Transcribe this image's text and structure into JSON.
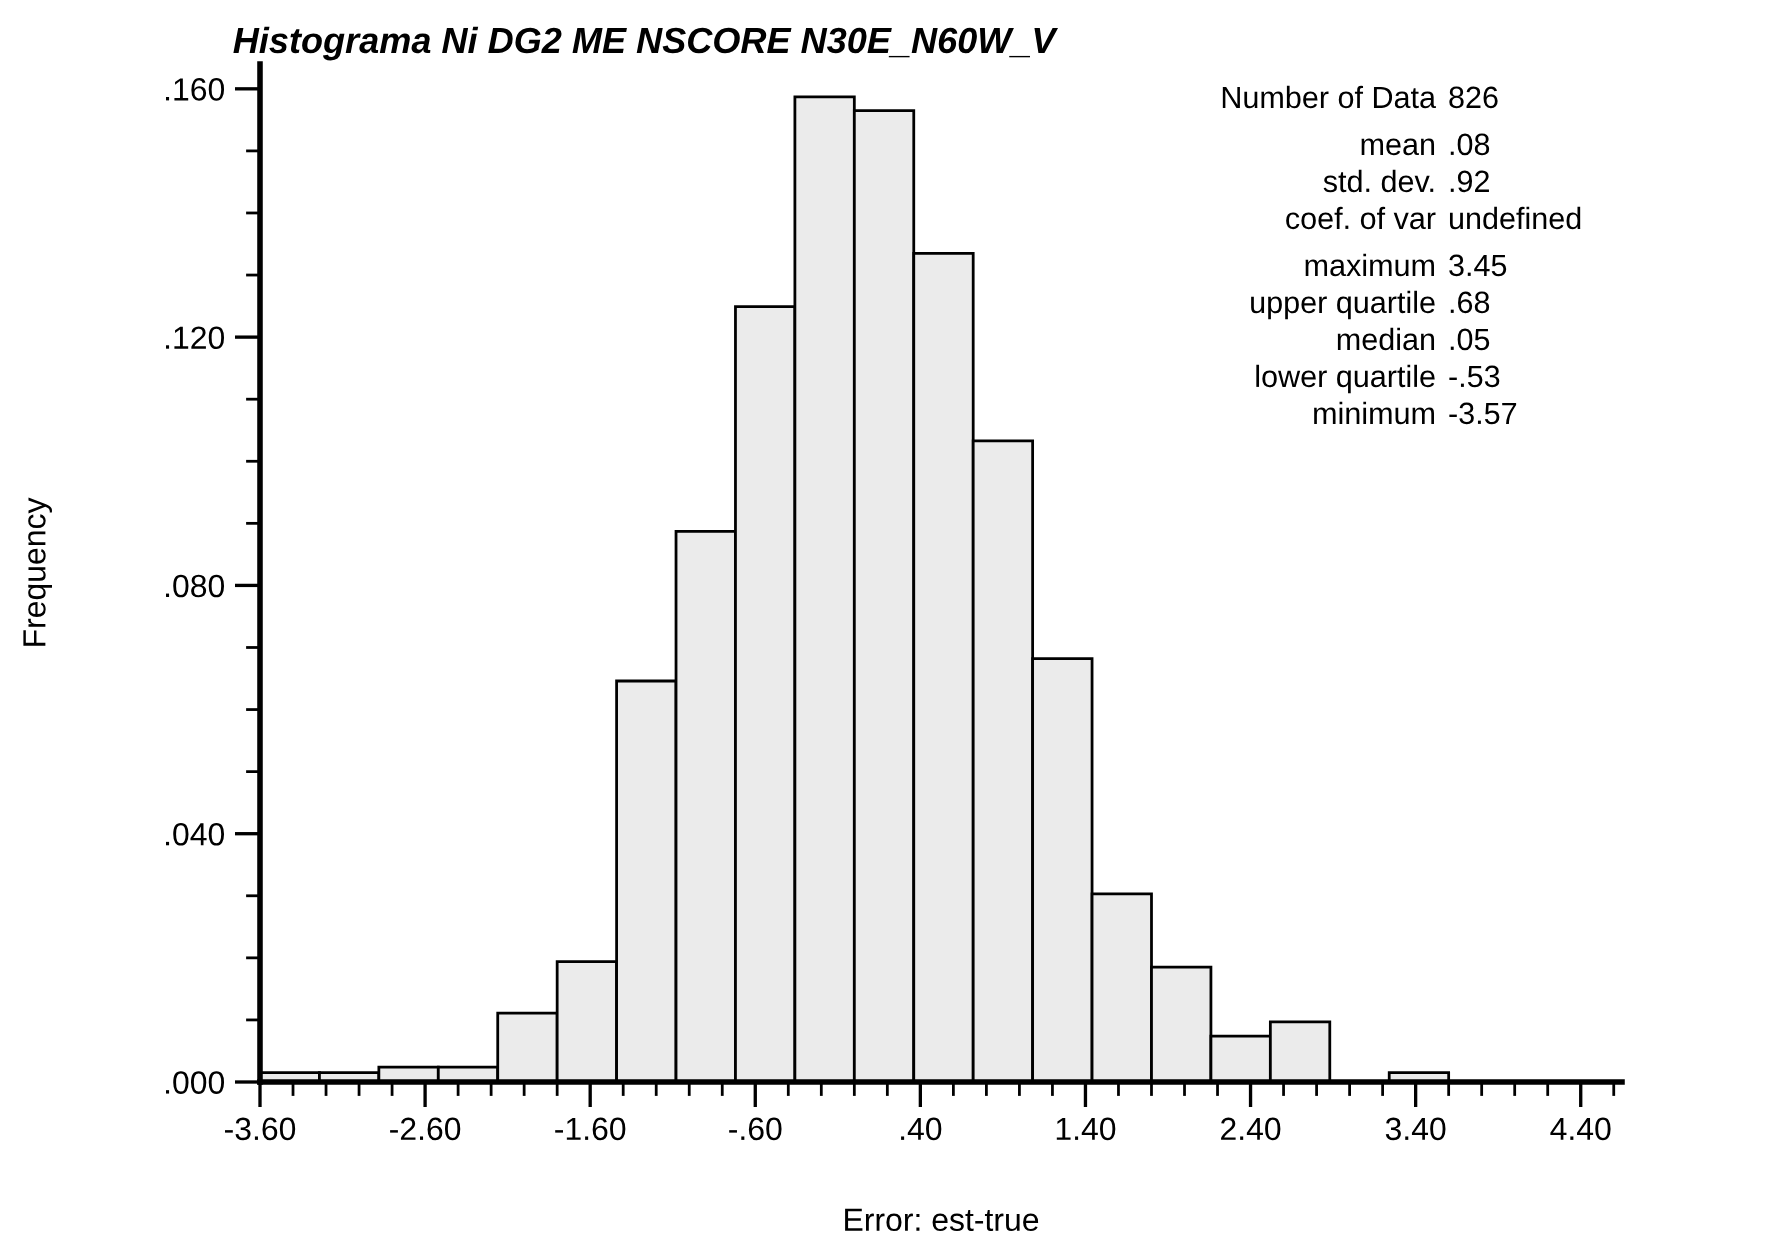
{
  "chart_data": {
    "type": "histogram",
    "title": "Histograma Ni DG2 ME NSCORE N30E_N60W_V",
    "xlabel": "Error: est-true",
    "ylabel": "Frequency",
    "color": "#ebebeb",
    "bins": [
      -3.6,
      -3.24,
      -2.88,
      -2.52,
      -2.16,
      -1.8,
      -1.44,
      -1.08,
      -0.72,
      -0.36,
      0,
      0.36,
      0.72,
      1.08,
      1.44,
      1.8,
      2.16,
      2.52,
      2.88,
      3.24,
      3.6
    ],
    "values": [
      0.0015,
      0.0015,
      0.0024,
      0.0024,
      0.0111,
      0.0194,
      0.0646,
      0.0887,
      0.1249,
      0.1587,
      0.1565,
      0.1335,
      0.1033,
      0.0682,
      0.0303,
      0.0185,
      0.0074,
      0.0097,
      0,
      0.0015
    ],
    "xlim": [
      -3.6,
      4.65
    ],
    "ylim": [
      0,
      0.164
    ],
    "xticks": [
      {
        "value": -3.6,
        "label": "-3.60"
      },
      {
        "value": -2.6,
        "label": "-2.60"
      },
      {
        "value": -1.6,
        "label": "-1.60"
      },
      {
        "value": -0.6,
        "label": "-.60"
      },
      {
        "value": 0.4,
        "label": ".40"
      },
      {
        "value": 1.4,
        "label": "1.40"
      },
      {
        "value": 2.4,
        "label": "2.40"
      },
      {
        "value": 3.4,
        "label": "3.40"
      },
      {
        "value": 4.4,
        "label": "4.40"
      }
    ],
    "yticks": [
      {
        "value": 0,
        "label": ".000"
      },
      {
        "value": 0.04,
        "label": ".040"
      },
      {
        "value": 0.08,
        "label": ".080"
      },
      {
        "value": 0.12,
        "label": ".120"
      },
      {
        "value": 0.16,
        "label": ".160"
      }
    ],
    "grid": false,
    "legend": false,
    "annotations": [
      "Number of Data 826",
      "mean .08",
      "std. dev. .92",
      "coef. of var undefined",
      "maximum 3.45",
      "upper quartile .68",
      "median .05",
      "lower quartile -.53",
      "minimum -3.57"
    ]
  }
}
